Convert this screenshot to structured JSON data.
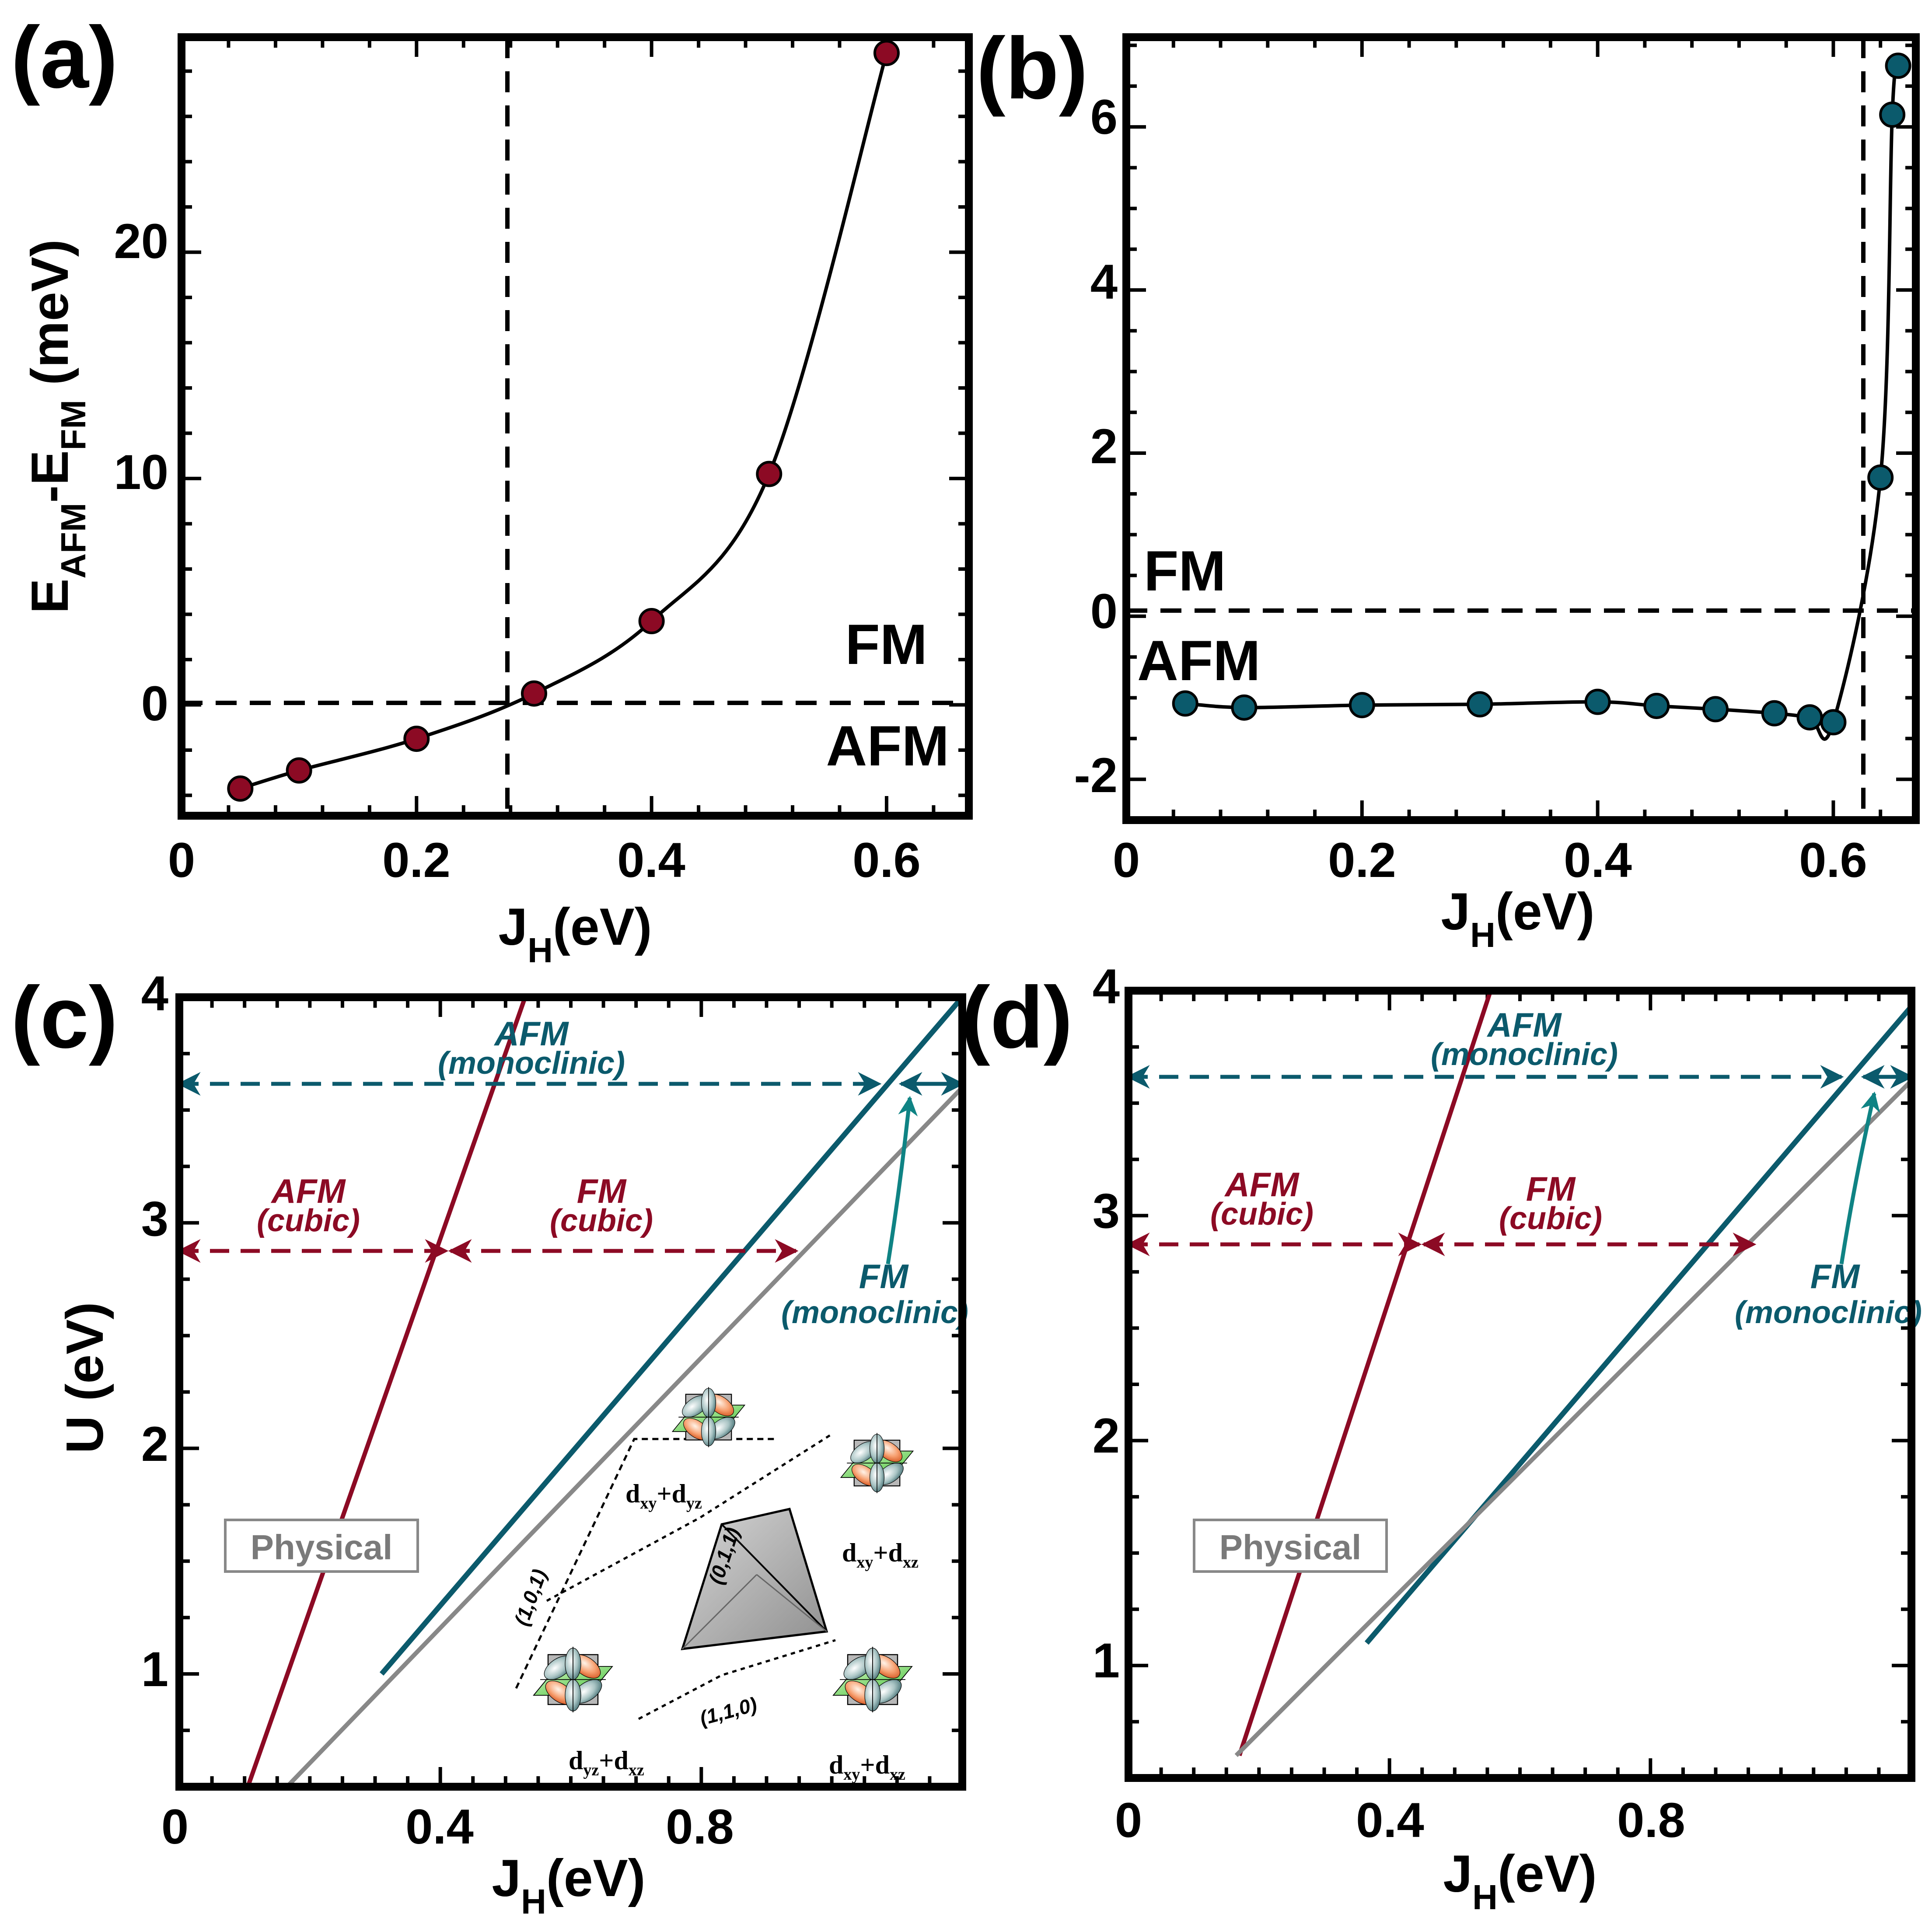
{
  "colors": {
    "red": "#8c0a24",
    "teal": "#0b5a6c",
    "teal_arrow": "#0f8384",
    "gray": "#888888",
    "black": "#000000"
  },
  "panel_labels": [
    "(a)",
    "(b)",
    "(c)",
    "(d)"
  ],
  "chart_data": [
    {
      "panel": "(a)",
      "type": "scatter",
      "xlabel_main": "J",
      "xlabel_sub": "H",
      "xlabel_tail": "(eV)",
      "ylabel": {
        "E1": "E",
        "s1": "AFM",
        "mid": "-E",
        "s2": "FM",
        "tail": " (meV)"
      },
      "xlim": [
        0,
        0.67
      ],
      "ylim": [
        -4.9,
        29.5
      ],
      "xticks": [
        "0",
        "0.2",
        "0.4",
        "0.6"
      ],
      "xtick_values": [
        0,
        0.2,
        0.4,
        0.6
      ],
      "yticks": [
        "0",
        "10",
        "20"
      ],
      "ytick_values": [
        0,
        10,
        20
      ],
      "series": [
        {
          "name": "E_AFM - E_FM",
          "color": "#8c0a24",
          "x": [
            0.05,
            0.1,
            0.2,
            0.3,
            0.4,
            0.5,
            0.6
          ],
          "y": [
            -3.7,
            -2.9,
            -1.5,
            0.5,
            3.7,
            10.2,
            28.8
          ]
        }
      ],
      "hline": 0,
      "vline": 0.275,
      "region_labels": [
        {
          "text": "FM",
          "x": 0.635,
          "y": 2.4,
          "anchor": "end"
        },
        {
          "text": "AFM",
          "x": 0.652,
          "y": -2.4,
          "anchor": "end"
        }
      ]
    },
    {
      "panel": "(b)",
      "type": "scatter",
      "xlabel_main": "J",
      "xlabel_sub": "H",
      "xlabel_tail": "(eV)",
      "xlim": [
        0,
        0.67
      ],
      "ylim": [
        -2.5,
        7.1
      ],
      "xticks": [
        "0",
        "0.2",
        "0.4",
        "0.6"
      ],
      "xtick_values": [
        0,
        0.2,
        0.4,
        0.6
      ],
      "yticks": [
        "-2",
        "0",
        "2",
        "4",
        "6"
      ],
      "ytick_values": [
        -2,
        0,
        2,
        4,
        6
      ],
      "series": [
        {
          "name": "E_AFM - E_FM",
          "color": "#0b5a6c",
          "x": [
            0.05,
            0.1,
            0.2,
            0.3,
            0.4,
            0.45,
            0.5,
            0.55,
            0.58,
            0.6,
            0.64,
            0.65,
            0.655
          ],
          "y": [
            -1.07,
            -1.12,
            -1.09,
            -1.08,
            -1.05,
            -1.1,
            -1.14,
            -1.19,
            -1.24,
            -1.3,
            1.7,
            6.15,
            6.75
          ]
        }
      ],
      "hline": 0,
      "vline": 0.625,
      "region_labels": [
        {
          "text": "FM",
          "x": 0.015,
          "y": 0.35,
          "anchor": "start"
        },
        {
          "text": "AFM",
          "x": 0.01,
          "y": -0.75,
          "anchor": "start"
        }
      ]
    },
    {
      "panel": "(c)",
      "type": "line",
      "xlabel_main": "J",
      "xlabel_sub": "H",
      "xlabel_tail": "(eV)",
      "ylabel": "U (eV)",
      "xlim": [
        0,
        1.2
      ],
      "ylim": [
        0.5,
        4.0
      ],
      "xticks": [
        "0",
        "0.4",
        "0.8"
      ],
      "xtick_values": [
        0,
        0.4,
        0.8
      ],
      "yticks": [
        "1",
        "2",
        "3",
        "4"
      ],
      "ytick_values": [
        1,
        2,
        3,
        4
      ],
      "series": [
        {
          "name": "AFM-FM cubic boundary",
          "color": "#8c0a24",
          "x": [
            0.105,
            0.53
          ],
          "y": [
            0.5,
            4.0
          ]
        },
        {
          "name": "monoclinic boundary",
          "color": "#0b5a6c",
          "x": [
            0.31,
            1.2
          ],
          "y": [
            1.0,
            4.0
          ]
        },
        {
          "name": "physical boundary",
          "color": "#888888",
          "x": [
            0.165,
            1.2
          ],
          "y": [
            0.5,
            3.6
          ]
        }
      ],
      "physical_label": "Physical",
      "annotations": {
        "afm_mono": "AFM",
        "afm_mono_sub": "(monoclinic)",
        "afm_cubic": "AFM",
        "afm_cubic_sub": "(cubic)",
        "fm_cubic": "FM",
        "fm_cubic_sub": "(cubic)",
        "fm_mono": "FM",
        "fm_mono_sub": "(monoclinic)"
      },
      "orbital_labels": {
        "o1": {
          "a": "d",
          "as": "xy",
          "b": "+d",
          "bs": "yz"
        },
        "o2": {
          "a": "d",
          "as": "xy",
          "b": "+d",
          "bs": "xz"
        },
        "o3": {
          "a": "d",
          "as": "yz",
          "b": "+d",
          "bs": "xz"
        },
        "o4": {
          "a": "d",
          "as": "xy",
          "b": "+d",
          "bs": "xz"
        }
      },
      "miller": [
        "(1,0,1)",
        "(0,1,1)",
        "(1,1,0)"
      ]
    },
    {
      "panel": "(d)",
      "type": "line",
      "xlabel_main": "J",
      "xlabel_sub": "H",
      "xlabel_tail": "(eV)",
      "xlim": [
        0,
        1.2
      ],
      "ylim": [
        0.5,
        4.0
      ],
      "xticks": [
        "0",
        "0.4",
        "0.8"
      ],
      "xtick_values": [
        0,
        0.4,
        0.8
      ],
      "yticks": [
        "1",
        "2",
        "3",
        "4"
      ],
      "ytick_values": [
        1,
        2,
        3,
        4
      ],
      "series": [
        {
          "name": "AFM-FM cubic boundary",
          "color": "#8c0a24",
          "x": [
            0.17,
            0.555
          ],
          "y": [
            0.6,
            4.0
          ]
        },
        {
          "name": "monoclinic boundary",
          "color": "#0b5a6c",
          "x": [
            0.365,
            1.2
          ],
          "y": [
            1.1,
            3.93
          ]
        },
        {
          "name": "physical boundary",
          "color": "#888888",
          "x": [
            0.165,
            1.2
          ],
          "y": [
            0.6,
            3.6
          ]
        }
      ],
      "physical_label": "Physical",
      "annotations": {
        "afm_mono": "AFM",
        "afm_mono_sub": "(monoclinic)",
        "afm_cubic": "AFM",
        "afm_cubic_sub": "(cubic)",
        "fm_cubic": "FM",
        "fm_cubic_sub": "(cubic)",
        "fm_mono": "FM",
        "fm_mono_sub": "(monoclinic)"
      }
    }
  ]
}
